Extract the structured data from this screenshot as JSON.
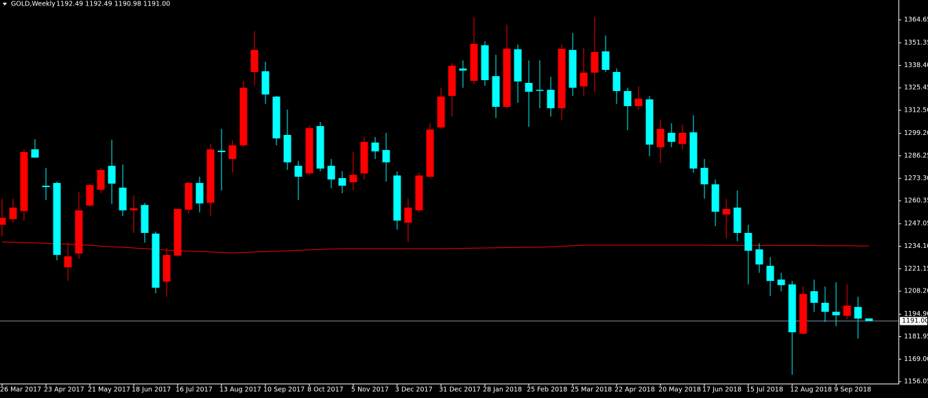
{
  "chart_data": {
    "type": "candlestick",
    "title": "GOLD,Weekly",
    "ohlc_header": "1192.49 1192.49 1190.98 1191.00",
    "categories": [
      "26 Mar 2017",
      null,
      null,
      null,
      "23 Apr 2017",
      null,
      null,
      null,
      "21 May 2017",
      null,
      null,
      null,
      "18 Jun 2017",
      null,
      null,
      null,
      "16 Jul 2017",
      null,
      null,
      null,
      "13 Aug 2017",
      null,
      null,
      null,
      "10 Sep 2017",
      null,
      null,
      null,
      "8 Oct 2017",
      null,
      null,
      null,
      "5 Nov 2017",
      null,
      null,
      null,
      "3 Dec 2017",
      null,
      null,
      null,
      "31 Dec 2017",
      null,
      null,
      null,
      "28 Jan 2018",
      null,
      null,
      null,
      "25 Feb 2018",
      null,
      null,
      null,
      "25 Mar 2018",
      null,
      null,
      null,
      "22 Apr 2018",
      null,
      null,
      null,
      "20 May 2018",
      null,
      null,
      null,
      "17 Jun 2018",
      null,
      null,
      null,
      "15 Jul 2018",
      null,
      null,
      null,
      "12 Aug 2018",
      null,
      null,
      null,
      "9 Sep 2018",
      null,
      null,
      null
    ],
    "open": [
      1246.5,
      1249.7,
      1254.4,
      1290.0,
      1269.0,
      1270.6,
      1222.0,
      1229.9,
      1257.6,
      1266.7,
      1280.5,
      1267.9,
      1254.8,
      1257.9,
      1241.4,
      1213.7,
      1228.7,
      1255.2,
      1270.6,
      1259.2,
      1289.2,
      1284.4,
      1292.3,
      1334.6,
      1335.0,
      1320.4,
      1298.3,
      1280.5,
      1276.1,
      1303.4,
      1280.5,
      1273.4,
      1271.0,
      1276.1,
      1293.9,
      1289.6,
      1274.9,
      1247.7,
      1254.8,
      1274.2,
      1302.6,
      1320.8,
      1336.6,
      1329.5,
      1350.0,
      1332.2,
      1314.5,
      1347.7,
      1328.3,
      1324.3,
      1324.3,
      1313.7,
      1347.3,
      1326.3,
      1334.2,
      1346.5,
      1334.6,
      1323.6,
      1314.9,
      1318.8,
      1291.2,
      1299.5,
      1293.1,
      1299.8,
      1279.3,
      1269.8,
      1252.4,
      1256.4,
      1241.8,
      1232.3,
      1222.8,
      1214.9,
      1212.1,
      1183.7,
      1208.2,
      1201.5,
      1196.3,
      1194.0,
      1199.1,
      1192.49
    ],
    "high": [
      1261.5,
      1261.5,
      1290.0,
      1295.9,
      1279.3,
      1271.4,
      1235.8,
      1265.5,
      1270.2,
      1279.3,
      1295.5,
      1281.3,
      1263.5,
      1259.1,
      1242.6,
      1233.1,
      1256.0,
      1271.0,
      1274.2,
      1293.1,
      1301.8,
      1295.1,
      1329.5,
      1358.3,
      1340.5,
      1320.8,
      1312.9,
      1283.3,
      1303.8,
      1305.8,
      1284.4,
      1277.3,
      1288.4,
      1297.1,
      1297.1,
      1299.5,
      1277.3,
      1261.5,
      1276.5,
      1305.0,
      1325.5,
      1339.7,
      1341.3,
      1366.2,
      1352.4,
      1344.5,
      1361.9,
      1350.4,
      1341.3,
      1341.3,
      1331.8,
      1350.4,
      1357.1,
      1348.4,
      1366.2,
      1355.6,
      1336.6,
      1325.5,
      1326.3,
      1320.8,
      1307.0,
      1305.0,
      1304.2,
      1309.7,
      1284.4,
      1272.6,
      1261.5,
      1266.3,
      1246.5,
      1235.8,
      1227.9,
      1218.8,
      1214.1,
      1210.9,
      1214.9,
      1210.9,
      1213.3,
      1212.1,
      1205.0,
      1192.49
    ],
    "low": [
      1239.8,
      1247.7,
      1248.9,
      1285.2,
      1260.7,
      1226.0,
      1214.1,
      1226.8,
      1256.8,
      1264.7,
      1258.4,
      1251.6,
      1241.8,
      1236.2,
      1207.0,
      1205.0,
      1227.9,
      1252.8,
      1253.6,
      1251.6,
      1266.3,
      1276.5,
      1291.2,
      1326.7,
      1316.2,
      1292.3,
      1278.1,
      1260.7,
      1274.9,
      1277.3,
      1267.5,
      1264.7,
      1266.3,
      1272.6,
      1284.4,
      1271.4,
      1243.7,
      1236.6,
      1253.6,
      1273.4,
      1301.8,
      1308.9,
      1325.5,
      1327.9,
      1326.7,
      1308.1,
      1313.7,
      1316.8,
      1303.0,
      1313.7,
      1308.9,
      1307.0,
      1320.8,
      1320.8,
      1322.8,
      1334.6,
      1316.2,
      1301.0,
      1312.9,
      1286.0,
      1282.1,
      1291.2,
      1290.0,
      1276.5,
      1261.5,
      1245.7,
      1238.6,
      1237.0,
      1212.1,
      1218.8,
      1205.4,
      1208.2,
      1160.0,
      1183.3,
      1196.3,
      1190.4,
      1188.0,
      1192.0,
      1180.9,
      1190.98
    ],
    "close": [
      1250.5,
      1256.4,
      1288.4,
      1285.2,
      1268.2,
      1229.1,
      1228.3,
      1254.8,
      1269.4,
      1278.1,
      1270.2,
      1254.8,
      1256.0,
      1241.8,
      1210.2,
      1229.1,
      1255.6,
      1270.6,
      1258.8,
      1290.0,
      1288.4,
      1292.3,
      1325.5,
      1347.3,
      1321.6,
      1296.3,
      1282.5,
      1274.2,
      1302.2,
      1278.9,
      1272.6,
      1269.0,
      1275.3,
      1294.3,
      1288.8,
      1282.5,
      1248.9,
      1256.4,
      1274.9,
      1301.4,
      1320.4,
      1338.2,
      1335.4,
      1350.8,
      1329.9,
      1314.5,
      1348.0,
      1329.1,
      1323.2,
      1323.9,
      1313.7,
      1348.0,
      1325.5,
      1334.2,
      1346.1,
      1335.8,
      1323.6,
      1314.9,
      1319.2,
      1292.7,
      1301.8,
      1294.3,
      1299.5,
      1278.9,
      1269.8,
      1254.0,
      1255.6,
      1241.8,
      1231.5,
      1223.6,
      1214.1,
      1211.7,
      1184.5,
      1206.6,
      1201.5,
      1196.3,
      1194.3,
      1199.9,
      1192.4,
      1191
    ],
    "up_color": "#ff0000",
    "down_color": "#00ffff",
    "moving_average": {
      "color": "#ff0000",
      "values": [
        1236.6,
        1236.4,
        1236.2,
        1236.0,
        1235.8,
        1235.6,
        1235.4,
        1235.0,
        1234.6,
        1234.2,
        1233.8,
        1233.5,
        1233.1,
        1232.7,
        1232.3,
        1231.9,
        1231.6,
        1231.3,
        1231.1,
        1230.8,
        1230.5,
        1230.3,
        1230.5,
        1230.8,
        1231.0,
        1231.3,
        1231.5,
        1231.8,
        1232.0,
        1232.2,
        1232.5,
        1232.7,
        1232.7,
        1232.7,
        1232.7,
        1232.7,
        1232.7,
        1232.7,
        1232.7,
        1232.7,
        1232.7,
        1232.8,
        1232.9,
        1233.0,
        1233.1,
        1233.2,
        1233.3,
        1233.4,
        1233.5,
        1233.5,
        1233.8,
        1234.1,
        1234.4,
        1234.7,
        1234.7,
        1234.7,
        1234.7,
        1234.7,
        1234.7,
        1234.7,
        1234.7,
        1234.7,
        1234.7,
        1234.7,
        1234.7,
        1234.6,
        1234.6,
        1234.6,
        1234.6,
        1234.6,
        1234.5,
        1234.5,
        1234.5,
        1234.5,
        1234.5,
        1234.4,
        1234.4,
        1234.4,
        1234.3,
        1234.3
      ]
    },
    "last_price": {
      "value": 1191,
      "label": "1191.00",
      "color": "#8090a0"
    },
    "ylim": [
      1154.9,
      1376.1
    ],
    "yticks": [
      1364.65,
      1351.35,
      {
        "value": 1338.4,
        "label": "1338.40"
      },
      1325.45,
      {
        "value": 1312.5,
        "label": "1312.50"
      },
      {
        "value": 1299.2,
        "label": "1299.20"
      },
      1286.25,
      {
        "value": 1273.3,
        "label": "1273.30"
      },
      1260.35,
      1247.05,
      {
        "value": 1234.1,
        "label": "1234.10"
      },
      1221.15,
      {
        "value": 1208.2,
        "label": "1208.20"
      },
      {
        "value": 1194.9,
        "label": "1194.90"
      },
      1181.95,
      {
        "value": 1169,
        "label": "1169.00"
      },
      1156.05
    ]
  }
}
